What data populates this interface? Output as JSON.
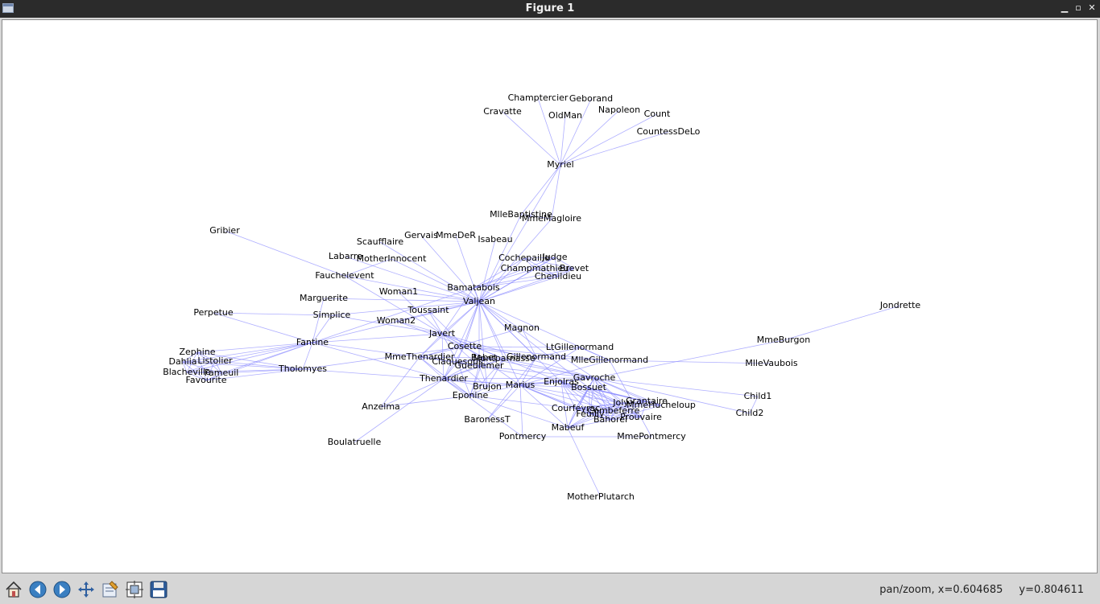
{
  "window": {
    "title": "Figure 1",
    "controls": [
      "minimize",
      "maximize",
      "close"
    ]
  },
  "toolbar": {
    "buttons": [
      {
        "name": "home-button",
        "icon": "home-icon"
      },
      {
        "name": "back-button",
        "icon": "arrow-left-icon"
      },
      {
        "name": "forward-button",
        "icon": "arrow-right-icon"
      },
      {
        "name": "pan-button",
        "icon": "move-icon"
      },
      {
        "name": "subplots-button",
        "icon": "edit-icon"
      },
      {
        "name": "configure-button",
        "icon": "frame-icon"
      },
      {
        "name": "save-button",
        "icon": "floppy-disk-icon"
      }
    ]
  },
  "status": {
    "mode": "pan/zoom",
    "x": "x=0.604685",
    "y": "y=0.804611"
  },
  "colors": {
    "edge": "#8c8cff",
    "node_label": "#000000",
    "titlebar": "#2b2b2b"
  },
  "graph": {
    "nodes": [
      "Myriel",
      "Napoleon",
      "MlleBaptistine",
      "MmeMagloire",
      "CountessDeLo",
      "Geborand",
      "Champtercier",
      "Cravatte",
      "Count",
      "OldMan",
      "Labarre",
      "Valjean",
      "Marguerite",
      "MmeDeR",
      "Isabeau",
      "Gervais",
      "Tholomyes",
      "Listolier",
      "Fameuil",
      "Blacheville",
      "Favourite",
      "Dahlia",
      "Zephine",
      "Fantine",
      "MmeThenardier",
      "Thenardier",
      "Cosette",
      "Javert",
      "Fauchelevent",
      "Bamatabois",
      "Perpetue",
      "Simplice",
      "Scaufflaire",
      "Woman1",
      "Judge",
      "Champmathieu",
      "Brevet",
      "Chenildieu",
      "Cochepaille",
      "Pontmercy",
      "Boulatruelle",
      "Eponine",
      "Anzelma",
      "Woman2",
      "MotherInnocent",
      "Gribier",
      "Jondrette",
      "MmeBurgon",
      "Gavroche",
      "Gillenormand",
      "Magnon",
      "MlleGillenormand",
      "MmePontmercy",
      "MlleVaubois",
      "LtGillenormand",
      "Marius",
      "BaronessT",
      "Mabeuf",
      "Enjolras",
      "Combeferre",
      "Prouvaire",
      "Feuilly",
      "Courfeyrac",
      "Bahorel",
      "Bossuet",
      "Joly",
      "Grantaire",
      "MotherPlutarch",
      "Gueulemer",
      "Babet",
      "Claquesous",
      "Montparnasse",
      "Toussaint",
      "Child1",
      "Child2",
      "Brujon",
      "MmeHucheloup"
    ],
    "edges": [
      [
        "Napoleon",
        "Myriel"
      ],
      [
        "MlleBaptistine",
        "Myriel"
      ],
      [
        "MmeMagloire",
        "Myriel"
      ],
      [
        "MmeMagloire",
        "MlleBaptistine"
      ],
      [
        "CountessDeLo",
        "Myriel"
      ],
      [
        "Geborand",
        "Myriel"
      ],
      [
        "Champtercier",
        "Myriel"
      ],
      [
        "Cravatte",
        "Myriel"
      ],
      [
        "Count",
        "Myriel"
      ],
      [
        "OldMan",
        "Myriel"
      ],
      [
        "Valjean",
        "Labarre"
      ],
      [
        "Valjean",
        "MmeMagloire"
      ],
      [
        "Valjean",
        "MlleBaptistine"
      ],
      [
        "Valjean",
        "Myriel"
      ],
      [
        "Marguerite",
        "Valjean"
      ],
      [
        "MmeDeR",
        "Valjean"
      ],
      [
        "Isabeau",
        "Valjean"
      ],
      [
        "Gervais",
        "Valjean"
      ],
      [
        "Listolier",
        "Tholomyes"
      ],
      [
        "Fameuil",
        "Tholomyes"
      ],
      [
        "Fameuil",
        "Listolier"
      ],
      [
        "Blacheville",
        "Tholomyes"
      ],
      [
        "Blacheville",
        "Listolier"
      ],
      [
        "Blacheville",
        "Fameuil"
      ],
      [
        "Favourite",
        "Tholomyes"
      ],
      [
        "Favourite",
        "Listolier"
      ],
      [
        "Favourite",
        "Fameuil"
      ],
      [
        "Favourite",
        "Blacheville"
      ],
      [
        "Dahlia",
        "Tholomyes"
      ],
      [
        "Dahlia",
        "Listolier"
      ],
      [
        "Dahlia",
        "Fameuil"
      ],
      [
        "Dahlia",
        "Blacheville"
      ],
      [
        "Dahlia",
        "Favourite"
      ],
      [
        "Zephine",
        "Tholomyes"
      ],
      [
        "Zephine",
        "Listolier"
      ],
      [
        "Zephine",
        "Fameuil"
      ],
      [
        "Zephine",
        "Blacheville"
      ],
      [
        "Zephine",
        "Favourite"
      ],
      [
        "Zephine",
        "Dahlia"
      ],
      [
        "Fantine",
        "Tholomyes"
      ],
      [
        "Fantine",
        "Listolier"
      ],
      [
        "Fantine",
        "Fameuil"
      ],
      [
        "Fantine",
        "Blacheville"
      ],
      [
        "Fantine",
        "Favourite"
      ],
      [
        "Fantine",
        "Dahlia"
      ],
      [
        "Fantine",
        "Zephine"
      ],
      [
        "Fantine",
        "Marguerite"
      ],
      [
        "Fantine",
        "Valjean"
      ],
      [
        "MmeThenardier",
        "Fantine"
      ],
      [
        "MmeThenardier",
        "Valjean"
      ],
      [
        "Thenardier",
        "MmeThenardier"
      ],
      [
        "Thenardier",
        "Fantine"
      ],
      [
        "Thenardier",
        "Valjean"
      ],
      [
        "Cosette",
        "MmeThenardier"
      ],
      [
        "Cosette",
        "Valjean"
      ],
      [
        "Cosette",
        "Tholomyes"
      ],
      [
        "Cosette",
        "Thenardier"
      ],
      [
        "Javert",
        "Valjean"
      ],
      [
        "Javert",
        "Fantine"
      ],
      [
        "Javert",
        "Thenardier"
      ],
      [
        "Javert",
        "MmeThenardier"
      ],
      [
        "Javert",
        "Cosette"
      ],
      [
        "Fauchelevent",
        "Valjean"
      ],
      [
        "Fauchelevent",
        "Javert"
      ],
      [
        "Bamatabois",
        "Fantine"
      ],
      [
        "Bamatabois",
        "Javert"
      ],
      [
        "Bamatabois",
        "Valjean"
      ],
      [
        "Perpetue",
        "Fantine"
      ],
      [
        "Simplice",
        "Perpetue"
      ],
      [
        "Simplice",
        "Valjean"
      ],
      [
        "Simplice",
        "Fantine"
      ],
      [
        "Simplice",
        "Javert"
      ],
      [
        "Scaufflaire",
        "Valjean"
      ],
      [
        "Woman1",
        "Valjean"
      ],
      [
        "Woman1",
        "Javert"
      ],
      [
        "Judge",
        "Valjean"
      ],
      [
        "Judge",
        "Bamatabois"
      ],
      [
        "Champmathieu",
        "Valjean"
      ],
      [
        "Champmathieu",
        "Judge"
      ],
      [
        "Champmathieu",
        "Bamatabois"
      ],
      [
        "Brevet",
        "Judge"
      ],
      [
        "Brevet",
        "Champmathieu"
      ],
      [
        "Brevet",
        "Valjean"
      ],
      [
        "Brevet",
        "Bamatabois"
      ],
      [
        "Chenildieu",
        "Judge"
      ],
      [
        "Chenildieu",
        "Champmathieu"
      ],
      [
        "Chenildieu",
        "Brevet"
      ],
      [
        "Chenildieu",
        "Valjean"
      ],
      [
        "Chenildieu",
        "Bamatabois"
      ],
      [
        "Cochepaille",
        "Judge"
      ],
      [
        "Cochepaille",
        "Champmathieu"
      ],
      [
        "Cochepaille",
        "Brevet"
      ],
      [
        "Cochepaille",
        "Chenildieu"
      ],
      [
        "Cochepaille",
        "Valjean"
      ],
      [
        "Cochepaille",
        "Bamatabois"
      ],
      [
        "Pontmercy",
        "Thenardier"
      ],
      [
        "Boulatruelle",
        "Thenardier"
      ],
      [
        "Eponine",
        "MmeThenardier"
      ],
      [
        "Eponine",
        "Thenardier"
      ],
      [
        "Anzelma",
        "Eponine"
      ],
      [
        "Anzelma",
        "Thenardier"
      ],
      [
        "Anzelma",
        "MmeThenardier"
      ],
      [
        "Woman2",
        "Valjean"
      ],
      [
        "Woman2",
        "Cosette"
      ],
      [
        "Woman2",
        "Javert"
      ],
      [
        "MotherInnocent",
        "Fauchelevent"
      ],
      [
        "MotherInnocent",
        "Valjean"
      ],
      [
        "Gribier",
        "Fauchelevent"
      ],
      [
        "MmeBurgon",
        "Jondrette"
      ],
      [
        "Gavroche",
        "MmeBurgon"
      ],
      [
        "Gavroche",
        "Thenardier"
      ],
      [
        "Gavroche",
        "Javert"
      ],
      [
        "Gavroche",
        "Valjean"
      ],
      [
        "Gillenormand",
        "Cosette"
      ],
      [
        "Gillenormand",
        "Valjean"
      ],
      [
        "Magnon",
        "Gillenormand"
      ],
      [
        "Magnon",
        "MmeThenardier"
      ],
      [
        "MlleGillenormand",
        "Gillenormand"
      ],
      [
        "MlleGillenormand",
        "Cosette"
      ],
      [
        "MlleGillenormand",
        "Valjean"
      ],
      [
        "MmePontmercy",
        "MlleGillenormand"
      ],
      [
        "MmePontmercy",
        "Pontmercy"
      ],
      [
        "MlleVaubois",
        "MlleGillenormand"
      ],
      [
        "LtGillenormand",
        "MlleGillenormand"
      ],
      [
        "LtGillenormand",
        "Gillenormand"
      ],
      [
        "LtGillenormand",
        "Cosette"
      ],
      [
        "Marius",
        "MlleGillenormand"
      ],
      [
        "Marius",
        "Gillenormand"
      ],
      [
        "Marius",
        "Pontmercy"
      ],
      [
        "Marius",
        "LtGillenormand"
      ],
      [
        "Marius",
        "Cosette"
      ],
      [
        "Marius",
        "Valjean"
      ],
      [
        "Marius",
        "Tholomyes"
      ],
      [
        "Marius",
        "Thenardier"
      ],
      [
        "Marius",
        "Eponine"
      ],
      [
        "Marius",
        "Gavroche"
      ],
      [
        "BaronessT",
        "Gillenormand"
      ],
      [
        "BaronessT",
        "Marius"
      ],
      [
        "Mabeuf",
        "Marius"
      ],
      [
        "Mabeuf",
        "Eponine"
      ],
      [
        "Mabeuf",
        "Gavroche"
      ],
      [
        "Enjolras",
        "Marius"
      ],
      [
        "Enjolras",
        "Gavroche"
      ],
      [
        "Enjolras",
        "Javert"
      ],
      [
        "Enjolras",
        "Mabeuf"
      ],
      [
        "Enjolras",
        "Valjean"
      ],
      [
        "Combeferre",
        "Enjolras"
      ],
      [
        "Combeferre",
        "Marius"
      ],
      [
        "Combeferre",
        "Gavroche"
      ],
      [
        "Combeferre",
        "Mabeuf"
      ],
      [
        "Prouvaire",
        "Gavroche"
      ],
      [
        "Prouvaire",
        "Enjolras"
      ],
      [
        "Prouvaire",
        "Combeferre"
      ],
      [
        "Feuilly",
        "Gavroche"
      ],
      [
        "Feuilly",
        "Enjolras"
      ],
      [
        "Feuilly",
        "Prouvaire"
      ],
      [
        "Feuilly",
        "Combeferre"
      ],
      [
        "Feuilly",
        "Mabeuf"
      ],
      [
        "Feuilly",
        "Marius"
      ],
      [
        "Courfeyrac",
        "Marius"
      ],
      [
        "Courfeyrac",
        "Enjolras"
      ],
      [
        "Courfeyrac",
        "Combeferre"
      ],
      [
        "Courfeyrac",
        "Gavroche"
      ],
      [
        "Courfeyrac",
        "Mabeuf"
      ],
      [
        "Courfeyrac",
        "Eponine"
      ],
      [
        "Courfeyrac",
        "Feuilly"
      ],
      [
        "Courfeyrac",
        "Prouvaire"
      ],
      [
        "Bahorel",
        "Combeferre"
      ],
      [
        "Bahorel",
        "Gavroche"
      ],
      [
        "Bahorel",
        "Courfeyrac"
      ],
      [
        "Bahorel",
        "Mabeuf"
      ],
      [
        "Bahorel",
        "Enjolras"
      ],
      [
        "Bahorel",
        "Feuilly"
      ],
      [
        "Bahorel",
        "Prouvaire"
      ],
      [
        "Bahorel",
        "Marius"
      ],
      [
        "Bossuet",
        "Marius"
      ],
      [
        "Bossuet",
        "Courfeyrac"
      ],
      [
        "Bossuet",
        "Gavroche"
      ],
      [
        "Bossuet",
        "Bahorel"
      ],
      [
        "Bossuet",
        "Enjolras"
      ],
      [
        "Bossuet",
        "Feuilly"
      ],
      [
        "Bossuet",
        "Prouvaire"
      ],
      [
        "Bossuet",
        "Combeferre"
      ],
      [
        "Bossuet",
        "Mabeuf"
      ],
      [
        "Bossuet",
        "Valjean"
      ],
      [
        "Joly",
        "Bahorel"
      ],
      [
        "Joly",
        "Bossuet"
      ],
      [
        "Joly",
        "Gavroche"
      ],
      [
        "Joly",
        "Courfeyrac"
      ],
      [
        "Joly",
        "Enjolras"
      ],
      [
        "Joly",
        "Feuilly"
      ],
      [
        "Joly",
        "Prouvaire"
      ],
      [
        "Joly",
        "Combeferre"
      ],
      [
        "Joly",
        "Mabeuf"
      ],
      [
        "Joly",
        "Marius"
      ],
      [
        "Grantaire",
        "Bossuet"
      ],
      [
        "Grantaire",
        "Enjolras"
      ],
      [
        "Grantaire",
        "Combeferre"
      ],
      [
        "Grantaire",
        "Courfeyrac"
      ],
      [
        "Grantaire",
        "Joly"
      ],
      [
        "Grantaire",
        "Gavroche"
      ],
      [
        "Grantaire",
        "Bahorel"
      ],
      [
        "Grantaire",
        "Feuilly"
      ],
      [
        "Grantaire",
        "Prouvaire"
      ],
      [
        "MotherPlutarch",
        "Mabeuf"
      ],
      [
        "Gueulemer",
        "Thenardier"
      ],
      [
        "Gueulemer",
        "Valjean"
      ],
      [
        "Gueulemer",
        "MmeThenardier"
      ],
      [
        "Gueulemer",
        "Javert"
      ],
      [
        "Gueulemer",
        "Gavroche"
      ],
      [
        "Gueulemer",
        "Eponine"
      ],
      [
        "Babet",
        "Thenardier"
      ],
      [
        "Babet",
        "Gueulemer"
      ],
      [
        "Babet",
        "Valjean"
      ],
      [
        "Babet",
        "MmeThenardier"
      ],
      [
        "Babet",
        "Javert"
      ],
      [
        "Babet",
        "Gavroche"
      ],
      [
        "Babet",
        "Eponine"
      ],
      [
        "Claquesous",
        "Thenardier"
      ],
      [
        "Claquesous",
        "Babet"
      ],
      [
        "Claquesous",
        "Gueulemer"
      ],
      [
        "Claquesous",
        "Valjean"
      ],
      [
        "Claquesous",
        "MmeThenardier"
      ],
      [
        "Claquesous",
        "Javert"
      ],
      [
        "Claquesous",
        "Eponine"
      ],
      [
        "Claquesous",
        "Enjolras"
      ],
      [
        "Montparnasse",
        "Javert"
      ],
      [
        "Montparnasse",
        "Babet"
      ],
      [
        "Montparnasse",
        "Gueulemer"
      ],
      [
        "Montparnasse",
        "Claquesous"
      ],
      [
        "Montparnasse",
        "Valjean"
      ],
      [
        "Montparnasse",
        "Gavroche"
      ],
      [
        "Montparnasse",
        "Eponine"
      ],
      [
        "Montparnasse",
        "Thenardier"
      ],
      [
        "Toussaint",
        "Cosette"
      ],
      [
        "Toussaint",
        "Javert"
      ],
      [
        "Toussaint",
        "Valjean"
      ],
      [
        "Child1",
        "Gavroche"
      ],
      [
        "Child2",
        "Gavroche"
      ],
      [
        "Child2",
        "Child1"
      ],
      [
        "Brujon",
        "Babet"
      ],
      [
        "Brujon",
        "Gueulemer"
      ],
      [
        "Brujon",
        "Thenardier"
      ],
      [
        "Brujon",
        "Gavroche"
      ],
      [
        "Brujon",
        "Eponine"
      ],
      [
        "Brujon",
        "Claquesous"
      ],
      [
        "Brujon",
        "Montparnasse"
      ],
      [
        "MmeHucheloup",
        "Bossuet"
      ],
      [
        "MmeHucheloup",
        "Joly"
      ],
      [
        "MmeHucheloup",
        "Grantaire"
      ],
      [
        "MmeHucheloup",
        "Bahorel"
      ],
      [
        "MmeHucheloup",
        "Courfeyrac"
      ],
      [
        "MmeHucheloup",
        "Gavroche"
      ],
      [
        "MmeHucheloup",
        "Enjolras"
      ]
    ]
  }
}
